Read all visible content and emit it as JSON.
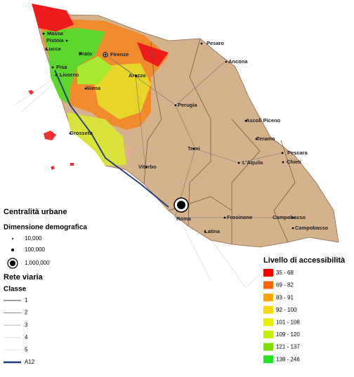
{
  "map": {
    "cities": [
      "Massa",
      "Pistoia",
      "Lucca",
      "Prato",
      "Firenze",
      "Pisa",
      "Livorno",
      "Siena",
      "Arezzo",
      "Grosseto",
      "Pesaro",
      "Ancona",
      "Perugia",
      "Ascoli Piceno",
      "Teramo",
      "Pescara",
      "Chieti",
      "Terni",
      "L'Aquila",
      "Viterbo",
      "Roma",
      "Frosinone",
      "Latina",
      "Campobasso",
      "Campobasso"
    ]
  },
  "legend_left": {
    "title": "Centralità urbane",
    "size_title": "Dimensione demografica",
    "sizes": [
      "10,000",
      "100,000",
      "1,000,000"
    ],
    "road_title": "Rete viaria",
    "class_title": "Classe",
    "classes": [
      "1",
      "2",
      "3",
      "4",
      "5",
      "A12"
    ]
  },
  "legend_right": {
    "title": "Livello di accessibilità",
    "classes": [
      {
        "label": "35 - 68",
        "color": "#ff0000"
      },
      {
        "label": "69 - 82",
        "color": "#ff6600"
      },
      {
        "label": "83 - 91",
        "color": "#ffa500"
      },
      {
        "label": "92 - 100",
        "color": "#ffd700"
      },
      {
        "label": "101 - 108",
        "color": "#e8f000"
      },
      {
        "label": "109 - 120",
        "color": "#c2ee00"
      },
      {
        "label": "121 - 137",
        "color": "#7fe000"
      },
      {
        "label": "138 - 246",
        "color": "#22e522"
      }
    ]
  }
}
